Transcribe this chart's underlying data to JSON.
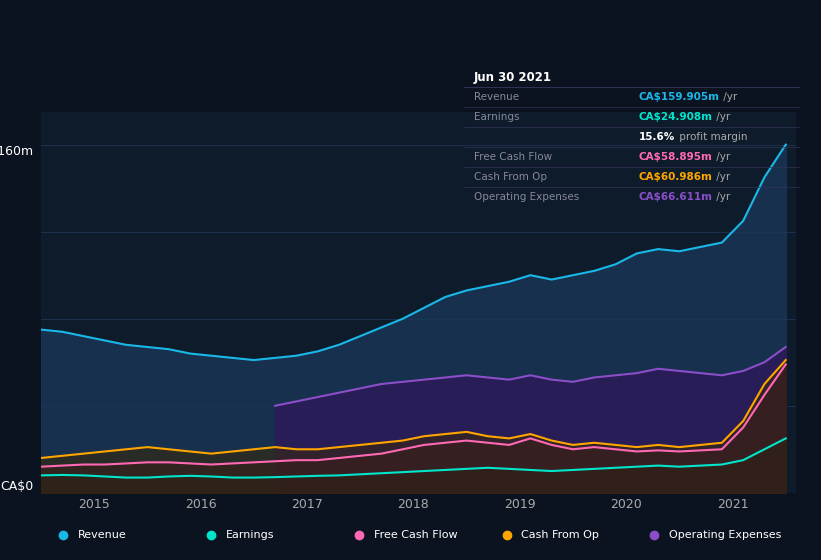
{
  "bg_color": "#0c1320",
  "plot_bg_color": "#0d1b2a",
  "grid_color": "#1e3050",
  "title_box": {
    "date": "Jun 30 2021",
    "rows": [
      {
        "label": "Revenue",
        "value": "CA$159.905m",
        "unit": "/yr",
        "color": "#00bfff"
      },
      {
        "label": "Earnings",
        "value": "CA$24.908m",
        "unit": "/yr",
        "color": "#00e5cc"
      },
      {
        "label": "",
        "value": "15.6%",
        "unit": " profit margin",
        "color": "#ffffff"
      },
      {
        "label": "Free Cash Flow",
        "value": "CA$58.895m",
        "unit": "/yr",
        "color": "#ff69b4"
      },
      {
        "label": "Cash From Op",
        "value": "CA$60.986m",
        "unit": "/yr",
        "color": "#ffa500"
      },
      {
        "label": "Operating Expenses",
        "value": "CA$66.611m",
        "unit": "/yr",
        "color": "#9b59b6"
      }
    ]
  },
  "x_ticks": [
    2015,
    2016,
    2017,
    2018,
    2019,
    2020,
    2021
  ],
  "y_label_top": "CA$160m",
  "y_label_bot": "CA$0",
  "ylim": [
    0,
    175
  ],
  "revenue": {
    "color": "#1ab8e8",
    "fill_color": "#1a3a5c",
    "x": [
      2014.5,
      2014.7,
      2014.9,
      2015.1,
      2015.3,
      2015.5,
      2015.7,
      2015.9,
      2016.1,
      2016.3,
      2016.5,
      2016.7,
      2016.9,
      2017.1,
      2017.3,
      2017.5,
      2017.7,
      2017.9,
      2018.1,
      2018.3,
      2018.5,
      2018.7,
      2018.9,
      2019.1,
      2019.3,
      2019.5,
      2019.7,
      2019.9,
      2020.1,
      2020.3,
      2020.5,
      2020.7,
      2020.9,
      2021.1,
      2021.3,
      2021.5
    ],
    "y": [
      75,
      74,
      72,
      70,
      68,
      67,
      66,
      64,
      63,
      62,
      61,
      62,
      63,
      65,
      68,
      72,
      76,
      80,
      85,
      90,
      93,
      95,
      97,
      100,
      98,
      100,
      102,
      105,
      110,
      112,
      111,
      113,
      115,
      125,
      145,
      160
    ]
  },
  "earnings": {
    "color": "#00e5cc",
    "fill_color": "#0a2a25",
    "x": [
      2014.5,
      2014.7,
      2014.9,
      2015.1,
      2015.3,
      2015.5,
      2015.7,
      2015.9,
      2016.1,
      2016.3,
      2016.5,
      2016.7,
      2016.9,
      2017.1,
      2017.3,
      2017.5,
      2017.7,
      2017.9,
      2018.1,
      2018.3,
      2018.5,
      2018.7,
      2018.9,
      2019.1,
      2019.3,
      2019.5,
      2019.7,
      2019.9,
      2020.1,
      2020.3,
      2020.5,
      2020.7,
      2020.9,
      2021.1,
      2021.3,
      2021.5
    ],
    "y": [
      8,
      8.2,
      8,
      7.5,
      7,
      7,
      7.5,
      7.8,
      7.5,
      7,
      7,
      7.2,
      7.5,
      7.8,
      8,
      8.5,
      9,
      9.5,
      10,
      10.5,
      11,
      11.5,
      11,
      10.5,
      10,
      10.5,
      11,
      11.5,
      12,
      12.5,
      12,
      12.5,
      13,
      15,
      20,
      25
    ]
  },
  "free_cash_flow": {
    "color": "#ff69b4",
    "fill_color": "#3a1030",
    "x": [
      2014.5,
      2014.7,
      2014.9,
      2015.1,
      2015.3,
      2015.5,
      2015.7,
      2015.9,
      2016.1,
      2016.3,
      2016.5,
      2016.7,
      2016.9,
      2017.1,
      2017.3,
      2017.5,
      2017.7,
      2017.9,
      2018.1,
      2018.3,
      2018.5,
      2018.7,
      2018.9,
      2019.1,
      2019.3,
      2019.5,
      2019.7,
      2019.9,
      2020.1,
      2020.3,
      2020.5,
      2020.7,
      2020.9,
      2021.1,
      2021.3,
      2021.5
    ],
    "y": [
      12,
      12.5,
      13,
      13,
      13.5,
      14,
      14,
      13.5,
      13,
      13.5,
      14,
      14.5,
      15,
      15,
      16,
      17,
      18,
      20,
      22,
      23,
      24,
      23,
      22,
      25,
      22,
      20,
      21,
      20,
      19,
      19.5,
      19,
      19.5,
      20,
      30,
      45,
      59
    ]
  },
  "cash_from_op": {
    "color": "#ffa500",
    "fill_color": "#3a2800",
    "x": [
      2014.5,
      2014.7,
      2014.9,
      2015.1,
      2015.3,
      2015.5,
      2015.7,
      2015.9,
      2016.1,
      2016.3,
      2016.5,
      2016.7,
      2016.9,
      2017.1,
      2017.3,
      2017.5,
      2017.7,
      2017.9,
      2018.1,
      2018.3,
      2018.5,
      2018.7,
      2018.9,
      2019.1,
      2019.3,
      2019.5,
      2019.7,
      2019.9,
      2020.1,
      2020.3,
      2020.5,
      2020.7,
      2020.9,
      2021.1,
      2021.3,
      2021.5
    ],
    "y": [
      16,
      17,
      18,
      19,
      20,
      21,
      20,
      19,
      18,
      19,
      20,
      21,
      20,
      20,
      21,
      22,
      23,
      24,
      26,
      27,
      28,
      26,
      25,
      27,
      24,
      22,
      23,
      22,
      21,
      22,
      21,
      22,
      23,
      33,
      50,
      61
    ]
  },
  "op_expenses": {
    "color": "#8a4fc8",
    "fill_color": "#2d1a5a",
    "x": [
      2016.7,
      2016.9,
      2017.1,
      2017.3,
      2017.5,
      2017.7,
      2017.9,
      2018.1,
      2018.3,
      2018.5,
      2018.7,
      2018.9,
      2019.1,
      2019.3,
      2019.5,
      2019.7,
      2019.9,
      2020.1,
      2020.3,
      2020.5,
      2020.7,
      2020.9,
      2021.1,
      2021.3,
      2021.5
    ],
    "y": [
      40,
      42,
      44,
      46,
      48,
      50,
      51,
      52,
      53,
      54,
      53,
      52,
      54,
      52,
      51,
      53,
      54,
      55,
      57,
      56,
      55,
      54,
      56,
      60,
      67
    ]
  },
  "legend": [
    {
      "label": "Revenue",
      "color": "#1ab8e8"
    },
    {
      "label": "Earnings",
      "color": "#00e5cc"
    },
    {
      "label": "Free Cash Flow",
      "color": "#ff69b4"
    },
    {
      "label": "Cash From Op",
      "color": "#ffa500"
    },
    {
      "label": "Operating Expenses",
      "color": "#8a4fc8"
    }
  ]
}
